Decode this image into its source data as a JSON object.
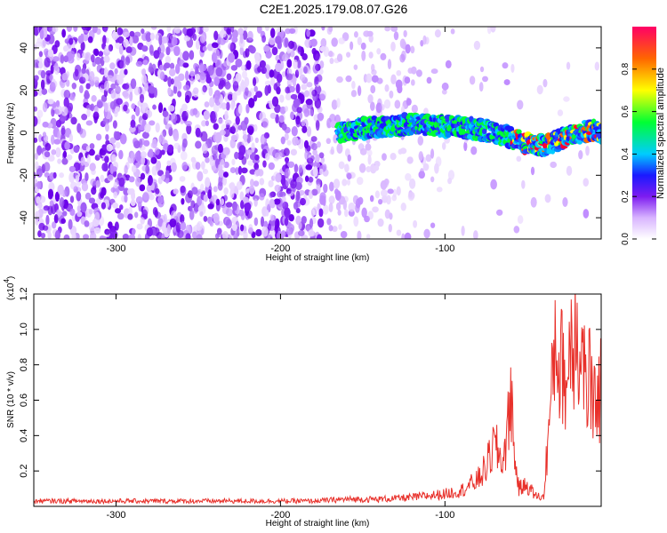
{
  "title": "C2E1.2025.179.08.07.G26",
  "chart_data": [
    {
      "type": "heatmap",
      "xlabel": "Height of straight line (km)",
      "ylabel": "Frequency (Hz)",
      "xlim": [
        -350,
        -5
      ],
      "ylim": [
        -50,
        50
      ],
      "xticks": [
        -300,
        -200,
        -100
      ],
      "yticks": [
        -40,
        -20,
        0,
        20,
        40
      ],
      "colorbar": {
        "label": "Normalized spectral amplitude",
        "range": [
          0,
          1
        ],
        "ticks": [
          0.0,
          0.2,
          0.4,
          0.6,
          0.8
        ]
      },
      "ridge": {
        "x": [
          -165,
          -150,
          -140,
          -120,
          -100,
          -80,
          -60,
          -50,
          -40,
          -30,
          -20,
          -10,
          -5
        ],
        "y": [
          0,
          2,
          3,
          4,
          3,
          2,
          -2,
          -5,
          -6,
          -3,
          0,
          1,
          0
        ]
      }
    },
    {
      "type": "line",
      "xlabel": "Height of straight line (km)",
      "ylabel": "SNR (10 * v/v)",
      "yexponent": "(x10",
      "yexponent_power": "4",
      "xlim": [
        -350,
        -5
      ],
      "ylim": [
        0,
        1.2
      ],
      "xticks": [
        -300,
        -200,
        -100
      ],
      "yticks": [
        0.2,
        0.4,
        0.6,
        0.8,
        1.0,
        1.2
      ],
      "series": [
        {
          "color": "#e8302a",
          "x": [
            -350,
            -300,
            -250,
            -200,
            -180,
            -160,
            -140,
            -120,
            -110,
            -100,
            -90,
            -80,
            -75,
            -70,
            -65,
            -62,
            -60,
            -58,
            -55,
            -50,
            -45,
            -40,
            -38,
            -35,
            -33,
            -30,
            -28,
            -26,
            -24,
            -22,
            -20,
            -18,
            -16,
            -14,
            -12,
            -10,
            -8,
            -6,
            -5
          ],
          "y": [
            0.03,
            0.03,
            0.03,
            0.03,
            0.03,
            0.04,
            0.04,
            0.05,
            0.06,
            0.07,
            0.09,
            0.15,
            0.22,
            0.35,
            0.25,
            0.4,
            0.7,
            0.3,
            0.1,
            0.12,
            0.06,
            0.05,
            0.3,
            0.65,
            0.98,
            0.75,
            0.85,
            0.6,
            1.0,
            0.9,
            1.22,
            0.7,
            0.95,
            0.55,
            0.8,
            0.45,
            0.7,
            0.6,
            0.8
          ]
        }
      ]
    }
  ]
}
